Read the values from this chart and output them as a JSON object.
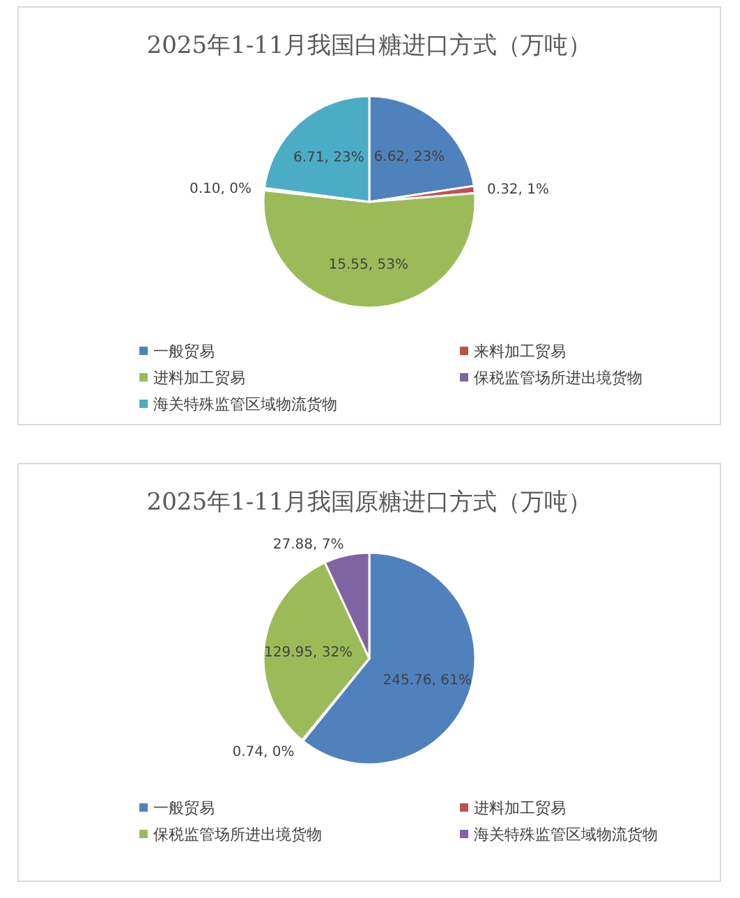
{
  "chart_data": [
    {
      "type": "pie",
      "title": "2025年1-11月我国白糖进口方式（万吨）",
      "categories": [
        "一般贸易",
        "来料加工贸易",
        "进料加工贸易",
        "保税监管场所进出境货物",
        "海关特殊监管区域物流货物"
      ],
      "values": [
        6.62,
        0.32,
        15.55,
        0.1,
        6.71
      ],
      "colors": [
        "#4f81bd",
        "#c0504d",
        "#9bbb59",
        "#8064a2",
        "#4bacc6"
      ],
      "value_labels": [
        "6.62, 23%",
        "0.32, 1%",
        "15.55, 53%",
        "0.10, 0%",
        "6.71, 23%"
      ],
      "legend": "bottom"
    },
    {
      "type": "pie",
      "title": "2025年1-11月我国原糖进口方式（万吨）",
      "categories": [
        "一般贸易",
        "进料加工贸易",
        "保税监管场所进出境货物",
        "海关特殊监管区域物流货物"
      ],
      "values": [
        245.76,
        0.74,
        129.95,
        27.88
      ],
      "colors": [
        "#4f81bd",
        "#c0504d",
        "#9bbb59",
        "#8064a2"
      ],
      "value_labels": [
        "245.76, 61%",
        "0.74, 0%",
        "129.95, 32%",
        "27.88, 7%"
      ],
      "legend": "bottom"
    }
  ]
}
